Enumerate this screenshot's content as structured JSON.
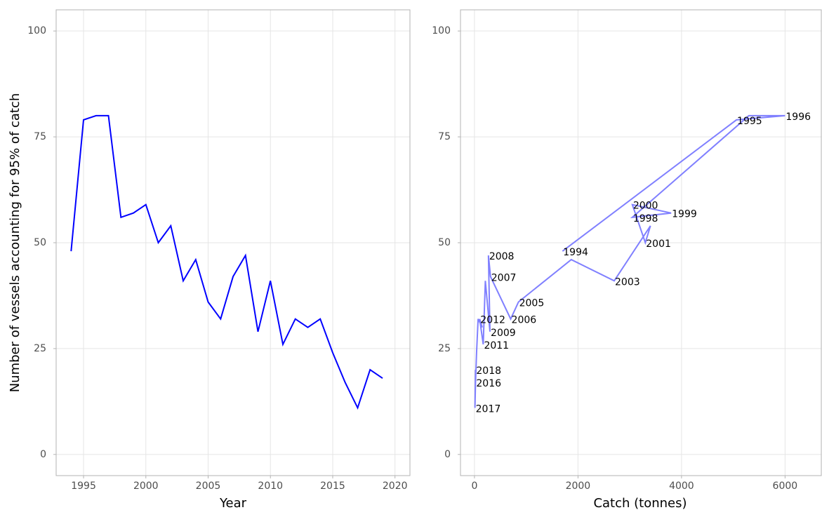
{
  "chart_data": [
    {
      "type": "line",
      "xlabel": "Year",
      "ylabel": "Number of vessels accounting for 95% of catch",
      "x": [
        1994,
        1995,
        1996,
        1997,
        1998,
        1999,
        2000,
        2001,
        2002,
        2003,
        2004,
        2005,
        2006,
        2007,
        2008,
        2009,
        2010,
        2011,
        2012,
        2013,
        2014,
        2015,
        2016,
        2017,
        2018,
        2019
      ],
      "values": [
        48,
        79,
        80,
        80,
        56,
        57,
        59,
        50,
        54,
        41,
        46,
        36,
        32,
        42,
        47,
        29,
        41,
        26,
        32,
        30,
        32,
        24,
        17,
        11,
        20,
        18
      ],
      "color": "#0000ff",
      "xlim": [
        1992.8,
        2021.2
      ],
      "xticks": [
        1995,
        2000,
        2005,
        2010,
        2015,
        2020
      ],
      "ylim": [
        -5,
        105
      ],
      "yticks": [
        0,
        25,
        50,
        75,
        100
      ],
      "grid": true
    },
    {
      "type": "path",
      "xlabel": "Catch (tonnes)",
      "x": [
        1700,
        5060,
        6000,
        5300,
        3050,
        3800,
        3050,
        3300,
        3400,
        2700,
        1870,
        850,
        700,
        310,
        270,
        300,
        210,
        170,
        100,
        150,
        70,
        40,
        20,
        10,
        20,
        20
      ],
      "values": [
        48,
        79,
        80,
        80,
        56,
        57,
        59,
        50,
        54,
        41,
        46,
        36,
        32,
        42,
        47,
        29,
        41,
        26,
        32,
        30,
        32,
        24,
        17,
        11,
        20,
        18
      ],
      "labels": [
        "1994",
        "1995",
        "1996",
        null,
        "1998",
        "1999",
        "2000",
        "2001",
        null,
        "2003",
        null,
        "2005",
        "2006",
        "2007",
        "2008",
        "2009",
        null,
        "2011",
        "2012",
        null,
        null,
        null,
        "2016",
        "2017",
        "2018",
        null
      ],
      "color": "#8080ff",
      "xlim": [
        -270,
        6700
      ],
      "xticks": [
        0,
        2000,
        4000,
        6000
      ],
      "ylim": [
        -5,
        105
      ],
      "yticks": [
        0,
        25,
        50,
        75,
        100
      ],
      "grid": true
    }
  ]
}
